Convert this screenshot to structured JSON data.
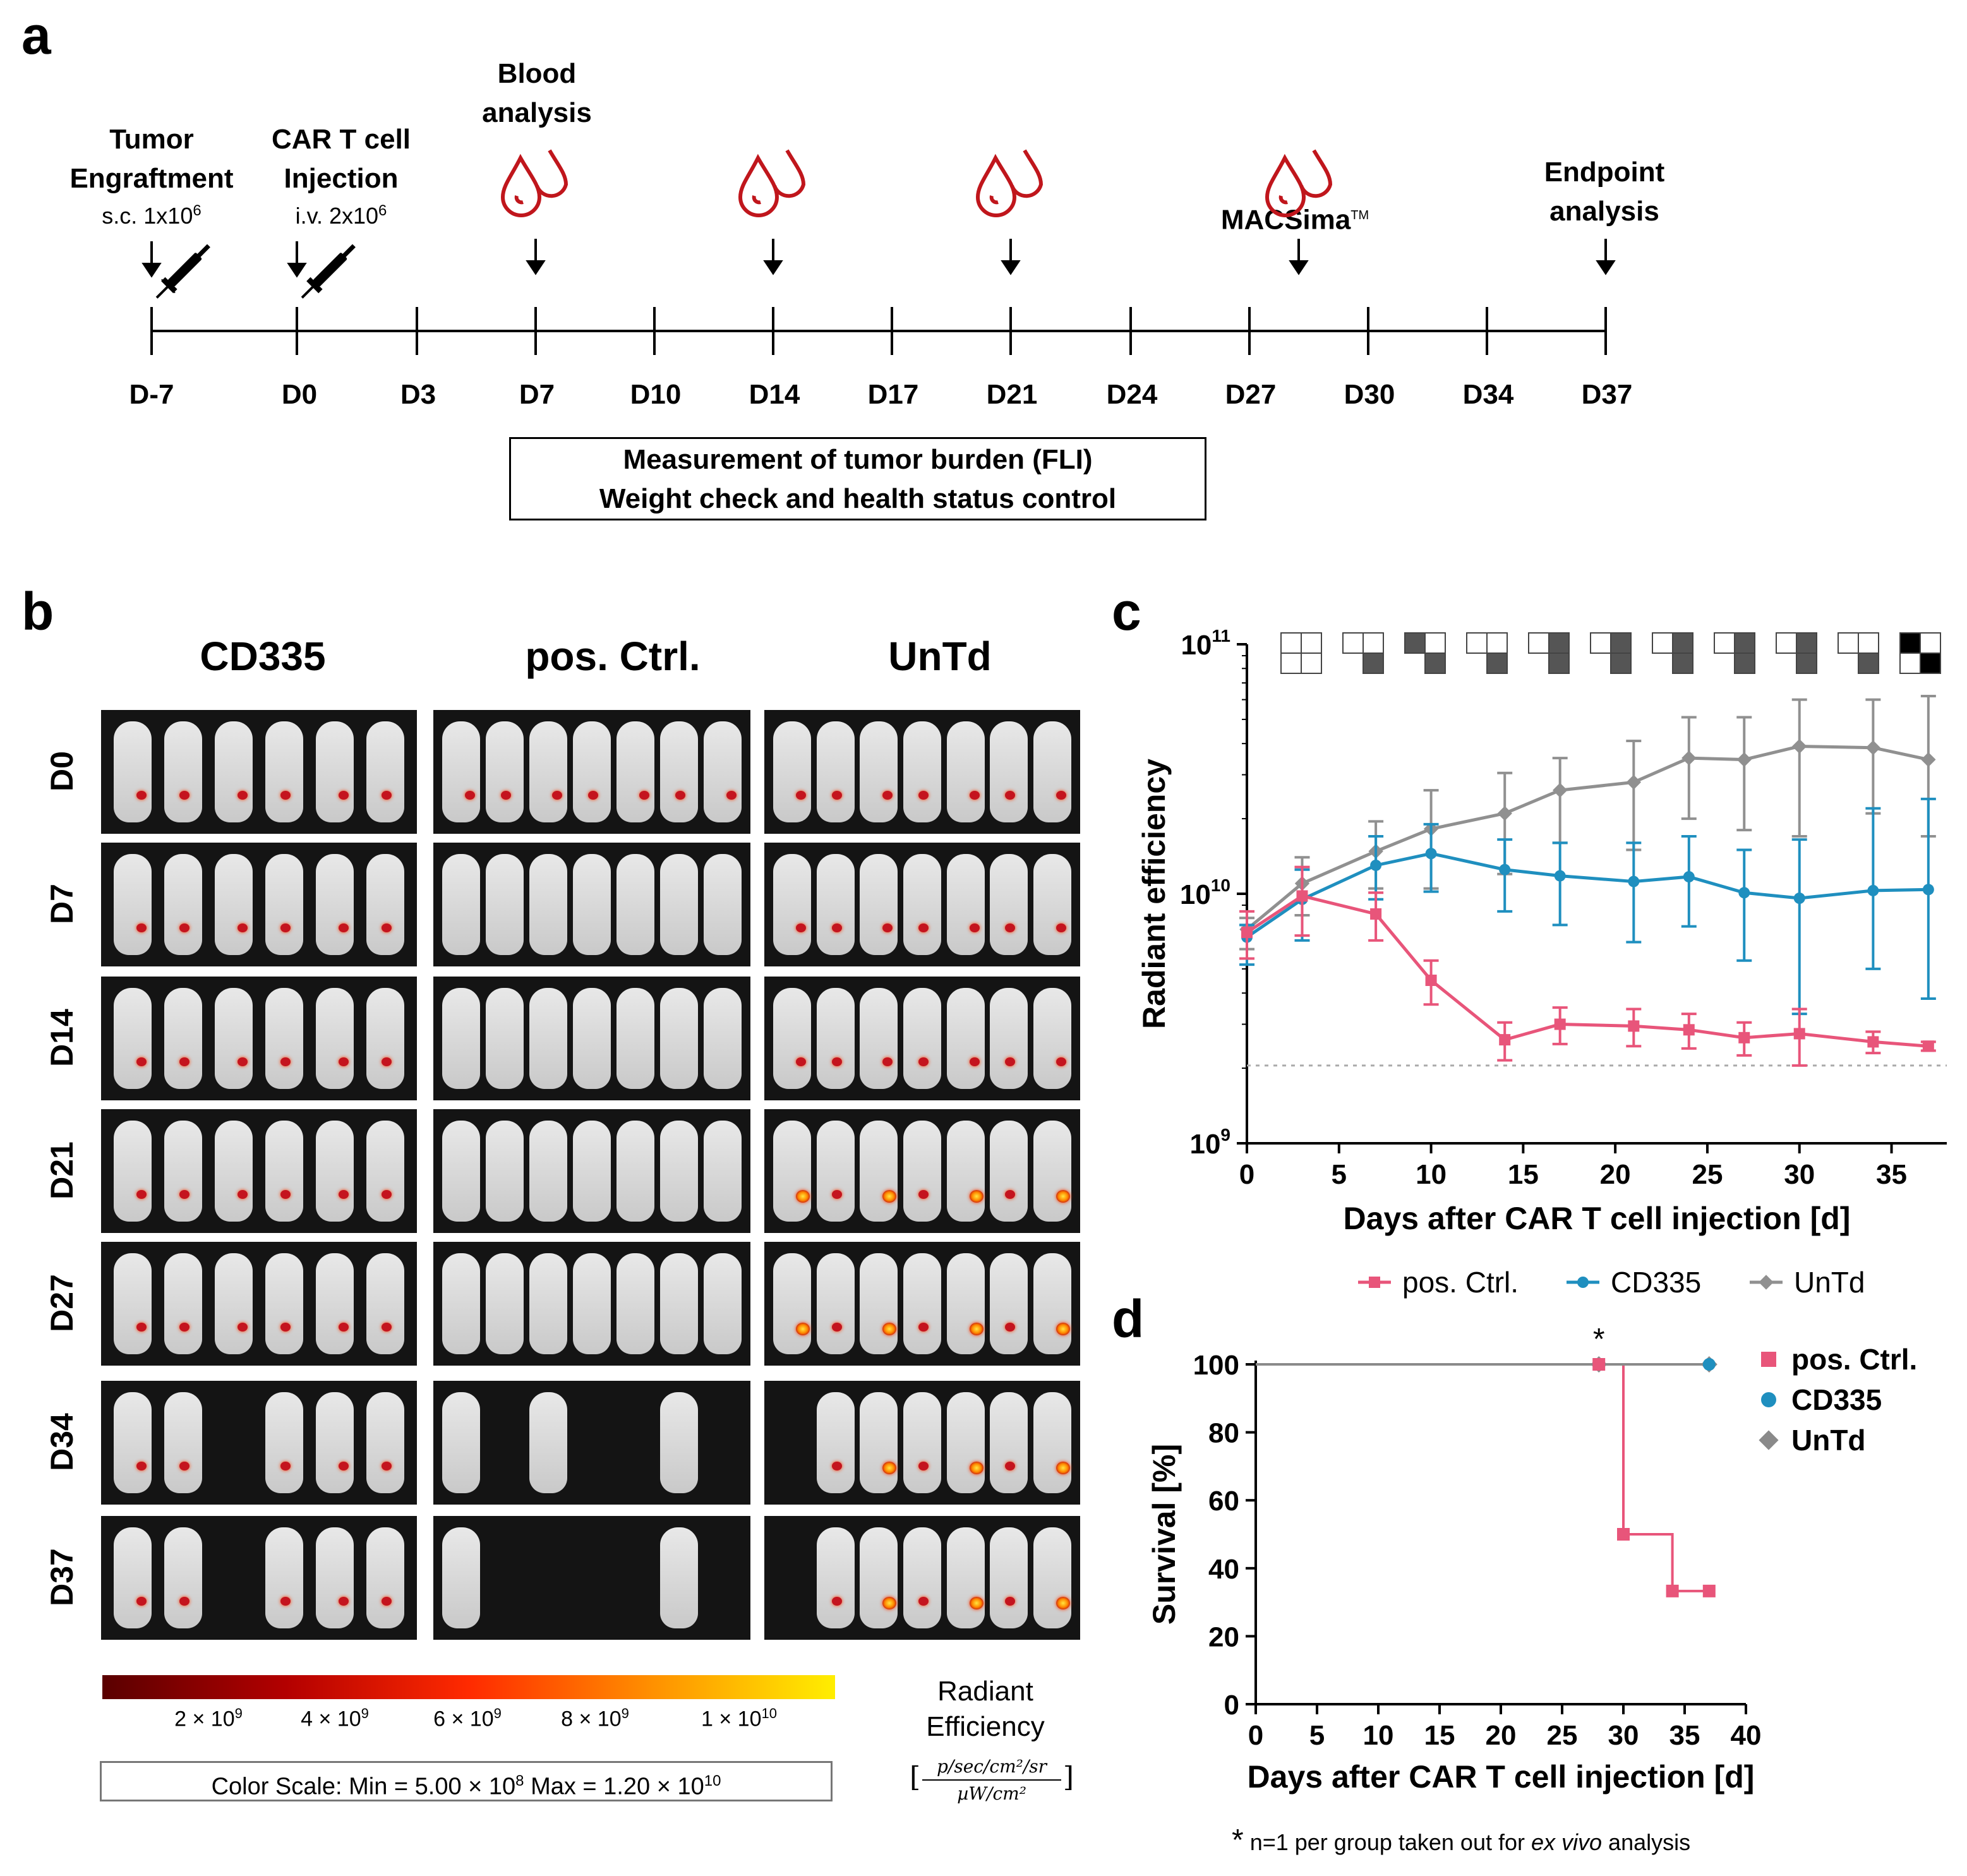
{
  "panels": {
    "a": "a",
    "b": "b",
    "c": "c",
    "d": "d"
  },
  "timeline": {
    "events": [
      {
        "title": "Tumor Engraftment",
        "line1": "Tumor",
        "line2": "Engraftment",
        "sub": "s.c. 1x10",
        "sub_exp": "6"
      },
      {
        "title": "CAR T cell Injection",
        "line1": "CAR T cell",
        "line2": "Injection",
        "sub": "i.v. 2x10",
        "sub_exp": "6"
      },
      {
        "line1": "Blood",
        "line2": "analysis"
      },
      {
        "line1": "MACSima",
        "tm": "TM"
      },
      {
        "line1": "Endpoint",
        "line2": "analysis"
      }
    ],
    "days": [
      "D-7",
      "D0",
      "D3",
      "D7",
      "D10",
      "D14",
      "D17",
      "D21",
      "D24",
      "D27",
      "D30",
      "D34",
      "D37"
    ],
    "box_line1": "Measurement of tumor burden (FLI)",
    "box_line2": "Weight check and health status control",
    "blood_icon": "blood-drop-icon",
    "syringe_icon": "syringe-icon"
  },
  "imaging": {
    "groups": [
      "CD335",
      "pos. Ctrl.",
      "UnTd"
    ],
    "rows": [
      "D0",
      "D7",
      "D14",
      "D21",
      "D27",
      "D34",
      "D37"
    ],
    "colorbar_ticks": [
      "2 × 10",
      "4 × 10",
      "6 × 10",
      "8 × 10",
      "1 × 10"
    ],
    "colorbar_exps": [
      "9",
      "9",
      "9",
      "9",
      "10"
    ],
    "color_scale_text": "Color Scale:  Min = 5.00 × 10",
    "color_scale_min_exp": "8",
    "color_scale_max_text": "  Max = 1.20 × 10",
    "color_scale_max_exp": "10",
    "radiant_label_1": "Radiant",
    "radiant_label_2": "Efficiency",
    "unit_num": "p/sec/cm²/sr",
    "unit_den": "µW/cm²",
    "colors": {
      "bar_low": "#5a0000",
      "bar_mid": "#ff2a00",
      "bar_high": "#ffee00"
    }
  },
  "chart_data": [
    {
      "type": "line",
      "id": "c",
      "title": "",
      "xlabel": "Days after CAR T cell injection [d]",
      "ylabel": "Radiant efficiency",
      "yscale": "log",
      "xlim": [
        0,
        38
      ],
      "ylim": [
        1000000000,
        100000000000
      ],
      "xticks": [
        0,
        5,
        10,
        15,
        20,
        25,
        30,
        35
      ],
      "yticks_labels": [
        "10",
        "10",
        "10"
      ],
      "yticks_exps": [
        "11",
        "10",
        "9"
      ],
      "x": [
        0,
        3,
        7,
        10,
        14,
        17,
        21,
        24,
        27,
        30,
        34,
        37
      ],
      "series": [
        {
          "name": "pos. Ctrl.",
          "color": "#e8557a",
          "marker": "square",
          "values": [
            7000000000,
            9800000000,
            8300000000,
            4500000000,
            2600000000,
            3000000000,
            2950000000,
            2850000000,
            2650000000,
            2750000000,
            2550000000,
            2450000000
          ],
          "err": [
            1500000000,
            3000000000,
            1800000000,
            900000000,
            450000000,
            500000000,
            500000000,
            450000000,
            400000000,
            700000000,
            250000000,
            100000000
          ]
        },
        {
          "name": "CD335",
          "color": "#1f8fbf",
          "marker": "circle",
          "values": [
            6700000000,
            9500000000,
            13000000000,
            14500000000,
            12500000000,
            11800000000,
            11200000000,
            11700000000,
            10100000000,
            9600000000,
            10300000000,
            10400000000
          ],
          "err_hi": [
            7500000000,
            12500000000,
            17000000000,
            19000000000,
            16500000000,
            16000000000,
            16000000000,
            17000000000,
            15000000000,
            16500000000,
            22000000000,
            24000000000
          ],
          "err_lo": [
            5200000000,
            6500000000,
            9500000000,
            10200000000,
            8500000000,
            7500000000,
            6400000000,
            7400000000,
            5400000000,
            3300000000,
            5000000000,
            3800000000
          ]
        },
        {
          "name": "UnTd",
          "color": "#909090",
          "marker": "diamond",
          "values": [
            7200000000,
            11000000000,
            14800000000,
            18200000000,
            21000000000,
            26000000000,
            28000000000,
            35000000000,
            34500000000,
            39000000000,
            38500000000,
            34500000000
          ],
          "err_hi": [
            8000000000,
            14000000000,
            19500000000,
            26000000000,
            30500000000,
            35000000000,
            41000000000,
            51000000000,
            51000000000,
            60000000000,
            60000000000,
            62000000000
          ],
          "err_lo": [
            6000000000,
            8200000000,
            10500000000,
            10500000000,
            12000000000,
            16000000000,
            15000000000,
            20000000000,
            18000000000,
            17000000000,
            21000000000,
            17000000000
          ]
        }
      ],
      "baseline": 2050000000,
      "legend": [
        "pos. Ctrl.",
        "CD335",
        "UnTd"
      ],
      "significance_boxes": "quadrant-pattern-icons"
    },
    {
      "type": "line",
      "id": "d",
      "title": "",
      "xlabel": "Days after CAR T cell injection [d]",
      "ylabel": "Survival [%]",
      "xlim": [
        0,
        40
      ],
      "ylim": [
        0,
        100
      ],
      "xticks": [
        0,
        5,
        10,
        15,
        20,
        25,
        30,
        35,
        40
      ],
      "yticks": [
        0,
        20,
        40,
        60,
        80,
        100
      ],
      "series": [
        {
          "name": "pos. Ctrl.",
          "color": "#e8557a",
          "steps": [
            [
              0,
              100
            ],
            [
              28,
              100
            ],
            [
              30,
              100
            ],
            [
              30,
              50
            ],
            [
              34,
              50
            ],
            [
              34,
              33.3
            ],
            [
              37,
              33.3
            ]
          ],
          "markers": [
            [
              28,
              100
            ],
            [
              30,
              50
            ],
            [
              34,
              33.3
            ],
            [
              37,
              33.3
            ]
          ]
        },
        {
          "name": "CD335",
          "color": "#1f8fbf",
          "steps": [
            [
              0,
              100
            ],
            [
              37,
              100
            ]
          ],
          "markers": [
            [
              28,
              100
            ],
            [
              37,
              100
            ]
          ]
        },
        {
          "name": "UnTd",
          "color": "#8a8a8a",
          "steps": [
            [
              0,
              100
            ],
            [
              37,
              100
            ]
          ],
          "markers": [
            [
              28,
              100
            ],
            [
              37,
              100
            ]
          ]
        }
      ],
      "annotation": "*",
      "legend": [
        "pos. Ctrl.",
        "CD335",
        "UnTd"
      ]
    }
  ],
  "footnote": {
    "star": "*",
    "text": " n=1 per group taken out for ",
    "italic": "ex vivo",
    "tail": " analysis"
  }
}
